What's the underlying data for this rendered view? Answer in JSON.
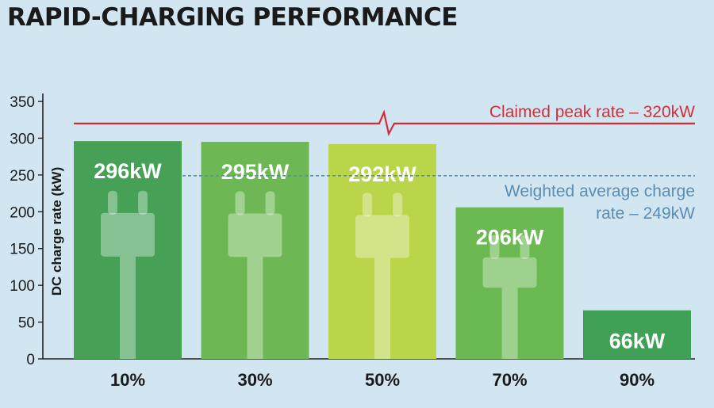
{
  "title": "RAPID-CHARGING PERFORMANCE",
  "chart_data": {
    "type": "bar",
    "title": "RAPID-CHARGING PERFORMANCE",
    "xlabel": "",
    "ylabel": "DC charge rate (kW)",
    "ylim": [
      0,
      350
    ],
    "yticks": [
      0,
      50,
      100,
      150,
      200,
      250,
      300,
      350
    ],
    "categories": [
      "10%",
      "30%",
      "50%",
      "70%",
      "90%"
    ],
    "values": [
      296,
      295,
      292,
      206,
      66
    ],
    "data_labels": [
      "296kW",
      "295kW",
      "292kW",
      "206kW",
      "66kW"
    ],
    "bar_colors": [
      "#46a157",
      "#6db854",
      "#b9d64b",
      "#6bb951",
      "#3fa056"
    ],
    "grid": false,
    "reference_lines": [
      {
        "label": "Claimed peak rate – 320kW",
        "value": 320,
        "color": "#d32d3a",
        "style": "solid"
      },
      {
        "label_lines": [
          "Weighted average charge",
          "rate – 249kW"
        ],
        "value": 249,
        "color": "#5a8db3",
        "style": "dashed"
      }
    ],
    "icons": [
      "plug-icon"
    ]
  }
}
